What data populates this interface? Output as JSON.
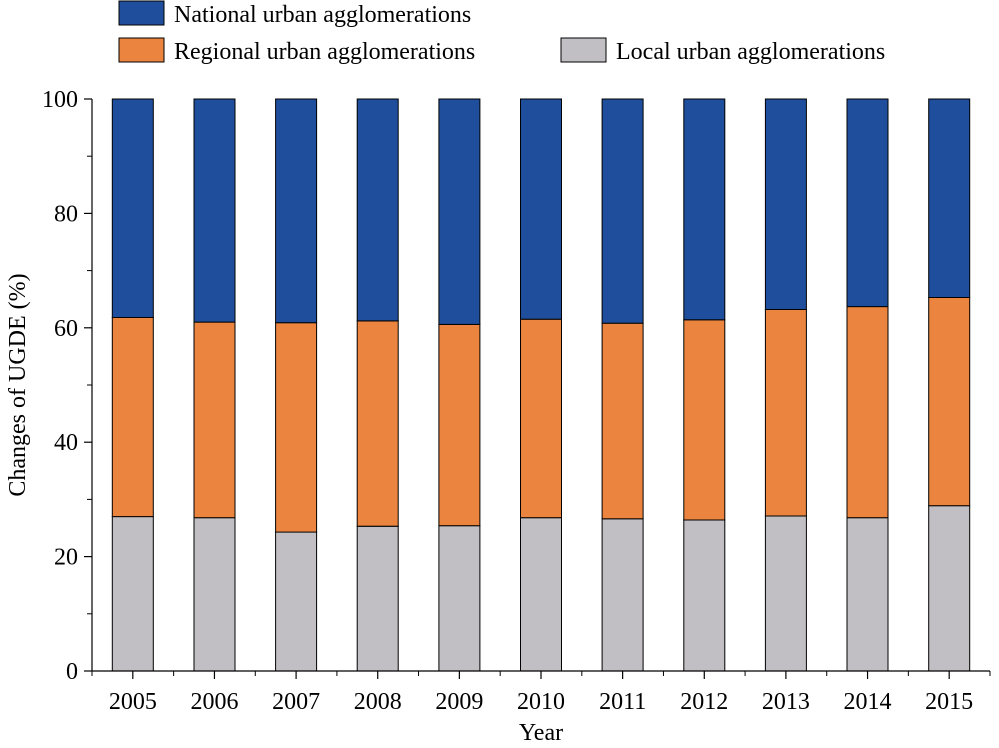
{
  "chart_data": {
    "type": "bar",
    "stacked": true,
    "title": "",
    "xlabel": "Year",
    "ylabel": "Changes of UGDE (%)",
    "ylim": [
      0,
      100
    ],
    "yticks": [
      "0",
      "20",
      "40",
      "60",
      "80",
      "100"
    ],
    "categories": [
      "2005",
      "2006",
      "2007",
      "2008",
      "2009",
      "2010",
      "2011",
      "2012",
      "2013",
      "2014",
      "2015"
    ],
    "legend_position": "top",
    "series": [
      {
        "name": "Local urban agglomerations",
        "color": "#c2bfc4",
        "values": [
          27.0,
          26.8,
          24.3,
          25.3,
          25.4,
          26.8,
          26.6,
          26.4,
          27.1,
          26.8,
          28.9
        ]
      },
      {
        "name": "Regional urban agglomerations",
        "color": "#ea843e",
        "values": [
          34.8,
          34.2,
          36.6,
          35.9,
          35.2,
          34.7,
          34.2,
          35.0,
          36.1,
          36.9,
          36.4
        ]
      },
      {
        "name": "National urban agglomerations",
        "color": "#1f4f9c",
        "values": [
          38.2,
          39.0,
          39.1,
          38.8,
          39.4,
          38.5,
          39.2,
          38.6,
          36.8,
          36.3,
          34.7
        ]
      }
    ],
    "legend_order": [
      2,
      1,
      0
    ]
  }
}
